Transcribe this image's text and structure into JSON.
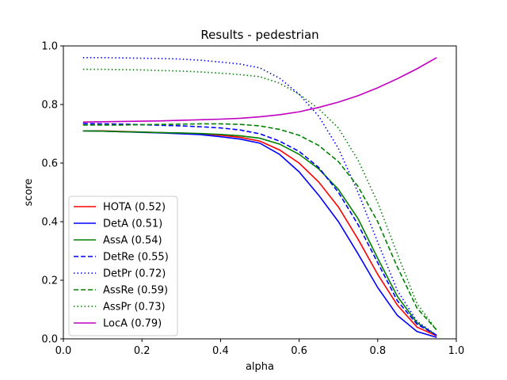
{
  "chart_data": {
    "type": "line",
    "title": "Results - pedestrian",
    "xlabel": "alpha",
    "ylabel": "score",
    "xlim": [
      0.0,
      1.0
    ],
    "ylim": [
      0.0,
      1.0
    ],
    "x_ticks": [
      "0.0",
      "0.2",
      "0.4",
      "0.6",
      "0.8",
      "1.0"
    ],
    "y_ticks": [
      "0.0",
      "0.2",
      "0.4",
      "0.6",
      "0.8",
      "1.0"
    ],
    "grid": false,
    "legend_position": "lower-left",
    "x": [
      0.05,
      0.1,
      0.15,
      0.2,
      0.25,
      0.3,
      0.35,
      0.4,
      0.45,
      0.5,
      0.55,
      0.6,
      0.65,
      0.7,
      0.75,
      0.8,
      0.85,
      0.9,
      0.95
    ],
    "series": [
      {
        "name": "HOTA (0.52)",
        "color": "#ff0000",
        "dash": "solid",
        "values": [
          0.71,
          0.71,
          0.708,
          0.706,
          0.704,
          0.702,
          0.7,
          0.695,
          0.688,
          0.675,
          0.645,
          0.6,
          0.535,
          0.45,
          0.34,
          0.22,
          0.115,
          0.04,
          0.01
        ]
      },
      {
        "name": "DetA (0.51)",
        "color": "#0000ff",
        "dash": "solid",
        "values": [
          0.71,
          0.709,
          0.707,
          0.705,
          0.703,
          0.7,
          0.697,
          0.69,
          0.682,
          0.668,
          0.63,
          0.57,
          0.49,
          0.4,
          0.29,
          0.175,
          0.08,
          0.025,
          0.005
        ]
      },
      {
        "name": "AssA (0.54)",
        "color": "#008000",
        "dash": "solid",
        "values": [
          0.71,
          0.709,
          0.707,
          0.706,
          0.704,
          0.703,
          0.701,
          0.698,
          0.693,
          0.685,
          0.665,
          0.63,
          0.58,
          0.51,
          0.41,
          0.275,
          0.145,
          0.055,
          0.012
        ]
      },
      {
        "name": "DetRe (0.55)",
        "color": "#0000ff",
        "dash": "dashed",
        "values": [
          0.735,
          0.734,
          0.733,
          0.731,
          0.729,
          0.727,
          0.724,
          0.72,
          0.713,
          0.7,
          0.675,
          0.64,
          0.585,
          0.5,
          0.39,
          0.26,
          0.13,
          0.05,
          0.012
        ]
      },
      {
        "name": "DetPr (0.72)",
        "color": "#0000ff",
        "dash": "dotted",
        "values": [
          0.96,
          0.96,
          0.959,
          0.958,
          0.957,
          0.955,
          0.951,
          0.945,
          0.938,
          0.925,
          0.89,
          0.835,
          0.76,
          0.65,
          0.5,
          0.33,
          0.165,
          0.06,
          0.012
        ]
      },
      {
        "name": "AssRe (0.59)",
        "color": "#008000",
        "dash": "dashed",
        "values": [
          0.73,
          0.73,
          0.73,
          0.731,
          0.732,
          0.733,
          0.734,
          0.734,
          0.732,
          0.727,
          0.715,
          0.695,
          0.66,
          0.605,
          0.52,
          0.4,
          0.245,
          0.105,
          0.03
        ]
      },
      {
        "name": "AssPr (0.73)",
        "color": "#008000",
        "dash": "dotted",
        "values": [
          0.92,
          0.92,
          0.919,
          0.918,
          0.916,
          0.914,
          0.911,
          0.907,
          0.902,
          0.895,
          0.873,
          0.835,
          0.785,
          0.72,
          0.61,
          0.465,
          0.29,
          0.12,
          0.03
        ]
      },
      {
        "name": "LocA (0.79)",
        "color": "#c000c0",
        "dash": "solid",
        "values": [
          0.74,
          0.741,
          0.742,
          0.743,
          0.744,
          0.746,
          0.748,
          0.75,
          0.753,
          0.758,
          0.765,
          0.775,
          0.79,
          0.808,
          0.83,
          0.857,
          0.888,
          0.922,
          0.96
        ]
      }
    ]
  }
}
